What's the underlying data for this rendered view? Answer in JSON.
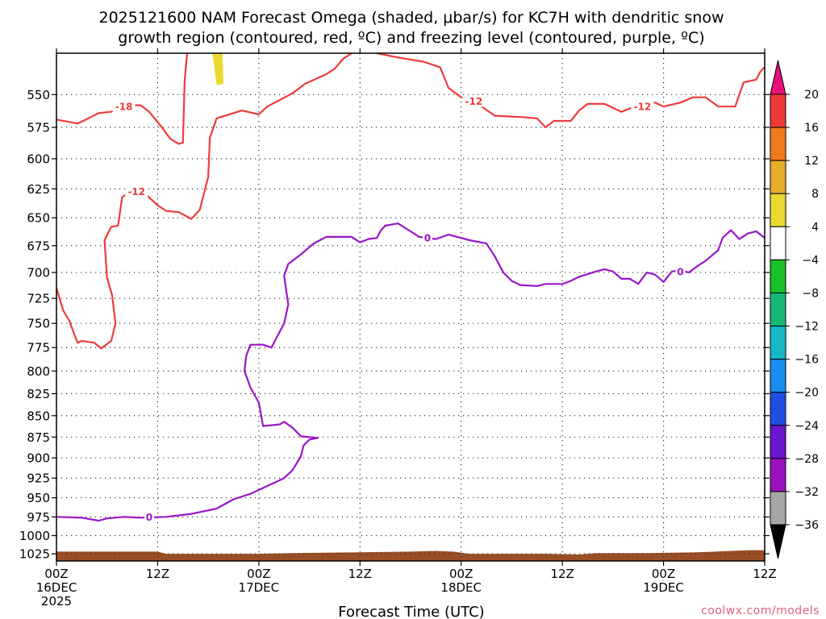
{
  "chart_data": {
    "type": "contour",
    "title_lines": [
      "2025121600 NAM Forecast Omega (shaded, μbar/s) for KC7H with dendritic snow",
      "growth region (contoured, red, ºC) and freezing level (contoured, purple, ºC)"
    ],
    "xlabel": "Forecast Time (UTC)",
    "x_ticks": [
      {
        "hours": 0,
        "line1": "00Z",
        "line2": "16DEC",
        "line3": "2025"
      },
      {
        "hours": 12,
        "line1": "12Z",
        "line2": "",
        "line3": ""
      },
      {
        "hours": 24,
        "line1": "00Z",
        "line2": "17DEC",
        "line3": ""
      },
      {
        "hours": 36,
        "line1": "12Z",
        "line2": "",
        "line3": ""
      },
      {
        "hours": 48,
        "line1": "00Z",
        "line2": "18DEC",
        "line3": ""
      },
      {
        "hours": 60,
        "line1": "12Z",
        "line2": "",
        "line3": ""
      },
      {
        "hours": 72,
        "line1": "00Z",
        "line2": "19DEC",
        "line3": ""
      },
      {
        "hours": 84,
        "line1": "12Z",
        "line2": "",
        "line3": ""
      }
    ],
    "x_range_hours": [
      0,
      84
    ],
    "y_ticks": [
      550,
      575,
      600,
      625,
      650,
      675,
      700,
      725,
      750,
      775,
      800,
      825,
      850,
      875,
      900,
      925,
      950,
      975,
      1000,
      1025
    ],
    "y_range_hpa": [
      520,
      1035
    ],
    "y_scale": "log-pressure",
    "grid": true,
    "colorbar": {
      "ticks": [
        "20",
        "16",
        "12",
        "8",
        "4",
        "−4",
        "−8",
        "−12",
        "−16",
        "−20",
        "−24",
        "−28",
        "−32",
        "−36"
      ],
      "bins": [
        {
          "color": "#e8107a"
        },
        {
          "color": "#ef3a3a"
        },
        {
          "color": "#f07a1e"
        },
        {
          "color": "#e6ac2a"
        },
        {
          "color": "#e8da30"
        },
        {
          "color": "#ffffff"
        },
        {
          "color": "#19c02a"
        },
        {
          "color": "#18b876"
        },
        {
          "color": "#16b8c6"
        },
        {
          "color": "#1a8ef0"
        },
        {
          "color": "#1f4ee0"
        },
        {
          "color": "#6a16d0"
        },
        {
          "color": "#9a12bf"
        },
        {
          "color": "#a6a6a6"
        },
        {
          "color": "#000000"
        }
      ]
    },
    "red_contour_color": "#ef3b3b",
    "purple_contour_color": "#9a16c8",
    "terrain_color": "#9a4e26",
    "contours": [
      {
        "kind": "snow_growth",
        "value": -18,
        "points": [
          [
            0,
            569
          ],
          [
            2.5,
            572
          ],
          [
            3.5,
            569
          ],
          [
            5,
            564
          ],
          [
            6.5,
            563
          ],
          [
            8,
            558
          ],
          [
            10,
            558
          ],
          [
            11,
            563
          ],
          [
            12.5,
            575
          ],
          [
            13.5,
            584
          ],
          [
            14.5,
            588
          ],
          [
            15,
            587
          ],
          [
            15.2,
            540
          ],
          [
            15.5,
            520
          ]
        ]
      },
      {
        "kind": "snow_growth",
        "value": -12,
        "points": [
          [
            0,
            715
          ],
          [
            0.8,
            737
          ],
          [
            1.5,
            747
          ],
          [
            2.5,
            770
          ],
          [
            3,
            768
          ],
          [
            4.5,
            770
          ],
          [
            5.3,
            776
          ],
          [
            6.5,
            768
          ],
          [
            7,
            750
          ],
          [
            6.6,
            722
          ],
          [
            6,
            705
          ],
          [
            5.7,
            670
          ],
          [
            6.5,
            658
          ],
          [
            7.3,
            657
          ],
          [
            7.8,
            632
          ],
          [
            9,
            626
          ],
          [
            10.5,
            629
          ],
          [
            12,
            639
          ],
          [
            13,
            644
          ],
          [
            14.5,
            645
          ],
          [
            16,
            651
          ],
          [
            17,
            643
          ],
          [
            18,
            615
          ],
          [
            18.2,
            583
          ],
          [
            19,
            568
          ],
          [
            22,
            562
          ],
          [
            24,
            565
          ],
          [
            25,
            559
          ],
          [
            28,
            549
          ],
          [
            29.5,
            542
          ],
          [
            32,
            535
          ],
          [
            33,
            531
          ],
          [
            34,
            524
          ],
          [
            35,
            520
          ]
        ]
      },
      {
        "kind": "snow_growth",
        "value": -12,
        "points": [
          [
            38,
            520
          ],
          [
            40.5,
            523
          ],
          [
            43.5,
            526
          ],
          [
            45.5,
            530
          ],
          [
            46.5,
            545
          ],
          [
            48,
            552
          ],
          [
            49.5,
            555
          ],
          [
            52,
            566
          ],
          [
            55,
            567
          ],
          [
            57,
            568
          ],
          [
            58,
            575
          ],
          [
            59,
            570
          ],
          [
            61,
            570
          ],
          [
            62,
            562
          ],
          [
            63,
            557
          ],
          [
            65,
            557
          ],
          [
            67,
            563
          ],
          [
            69,
            558
          ],
          [
            71,
            556
          ],
          [
            72,
            559
          ],
          [
            74,
            556
          ],
          [
            75.5,
            552
          ],
          [
            77,
            552
          ],
          [
            78.5,
            559
          ],
          [
            80.5,
            559
          ],
          [
            81.5,
            541
          ],
          [
            83,
            539
          ],
          [
            83.5,
            533
          ],
          [
            84,
            530
          ]
        ]
      },
      {
        "kind": "freezing_level",
        "value": 0,
        "points": [
          [
            0,
            975
          ],
          [
            3,
            976
          ],
          [
            5,
            980
          ],
          [
            6,
            977
          ],
          [
            8,
            975
          ],
          [
            10,
            976
          ],
          [
            13,
            975
          ],
          [
            16,
            971
          ],
          [
            19,
            964
          ],
          [
            21,
            952
          ],
          [
            23,
            945
          ],
          [
            25,
            935
          ],
          [
            27,
            925
          ],
          [
            28,
            915
          ],
          [
            29,
            898
          ],
          [
            29.3,
            885
          ],
          [
            30,
            878
          ],
          [
            31,
            876
          ],
          [
            29,
            874
          ],
          [
            28,
            864
          ],
          [
            27,
            857
          ],
          [
            26.5,
            860
          ],
          [
            24.5,
            862
          ],
          [
            24,
            835
          ],
          [
            23,
            818
          ],
          [
            22.3,
            800
          ],
          [
            22.5,
            784
          ],
          [
            23,
            772
          ],
          [
            24.5,
            772
          ],
          [
            25.5,
            775
          ],
          [
            27,
            750
          ],
          [
            27.5,
            731
          ],
          [
            27,
            703
          ],
          [
            27.5,
            692
          ],
          [
            29,
            683
          ],
          [
            30.5,
            673
          ],
          [
            31.5,
            669
          ],
          [
            32,
            667
          ],
          [
            34,
            667
          ],
          [
            35,
            667
          ],
          [
            36,
            672
          ],
          [
            37,
            669
          ],
          [
            38,
            668
          ],
          [
            38.5,
            661
          ],
          [
            39,
            657
          ],
          [
            40.5,
            655
          ],
          [
            42,
            662
          ],
          [
            43,
            667
          ],
          [
            45,
            669
          ],
          [
            46.5,
            665
          ],
          [
            47.5,
            667
          ],
          [
            49,
            670
          ],
          [
            51,
            673
          ],
          [
            52,
            685
          ],
          [
            53,
            700
          ],
          [
            54,
            708
          ],
          [
            55,
            712
          ],
          [
            57,
            713
          ],
          [
            58,
            711
          ],
          [
            60,
            711
          ],
          [
            61,
            708
          ],
          [
            62,
            704
          ],
          [
            64,
            699
          ],
          [
            65,
            697
          ],
          [
            66,
            699
          ],
          [
            67,
            706
          ],
          [
            68,
            706
          ],
          [
            69,
            711
          ],
          [
            70,
            700
          ],
          [
            71,
            702
          ],
          [
            72,
            709
          ],
          [
            73,
            699
          ],
          [
            74,
            698
          ],
          [
            75,
            700
          ],
          [
            76,
            694
          ],
          [
            77,
            689
          ],
          [
            78.5,
            679
          ],
          [
            79,
            668
          ],
          [
            80,
            661
          ],
          [
            81,
            669
          ],
          [
            82,
            664
          ],
          [
            83,
            662
          ],
          [
            84,
            668
          ]
        ]
      }
    ],
    "contour_labels": [
      {
        "text": "-18",
        "hours": 8,
        "hpa": 559,
        "kind": "snow_growth"
      },
      {
        "text": "-12",
        "hours": 9.5,
        "hpa": 627,
        "kind": "snow_growth"
      },
      {
        "text": "-12",
        "hours": 49.5,
        "hpa": 555,
        "kind": "snow_growth"
      },
      {
        "text": "-12",
        "hours": 69.5,
        "hpa": 559,
        "kind": "snow_growth"
      },
      {
        "text": "0",
        "hours": 11,
        "hpa": 975,
        "kind": "freezing_level"
      },
      {
        "text": "0",
        "hours": 44,
        "hpa": 668,
        "kind": "freezing_level"
      },
      {
        "text": "0",
        "hours": 74,
        "hpa": 699,
        "kind": "freezing_level"
      }
    ],
    "shaded_omega": [
      {
        "omega_bin": "4 to 8",
        "color": "#e8da30",
        "points": [
          [
            18.5,
            520
          ],
          [
            19.7,
            520
          ],
          [
            19.8,
            542
          ],
          [
            19,
            543
          ]
        ]
      }
    ],
    "terrain_surface_hpa": [
      [
        0,
        1022
      ],
      [
        12,
        1022
      ],
      [
        13,
        1025
      ],
      [
        24,
        1025
      ],
      [
        28,
        1024
      ],
      [
        36,
        1023
      ],
      [
        42,
        1022
      ],
      [
        45,
        1021
      ],
      [
        47,
        1022
      ],
      [
        49,
        1025
      ],
      [
        58,
        1025
      ],
      [
        62,
        1026
      ],
      [
        64,
        1024
      ],
      [
        70,
        1024
      ],
      [
        76,
        1023
      ],
      [
        80,
        1021
      ],
      [
        82,
        1020
      ],
      [
        84,
        1020
      ]
    ]
  },
  "credit": "coolwx.com/models"
}
